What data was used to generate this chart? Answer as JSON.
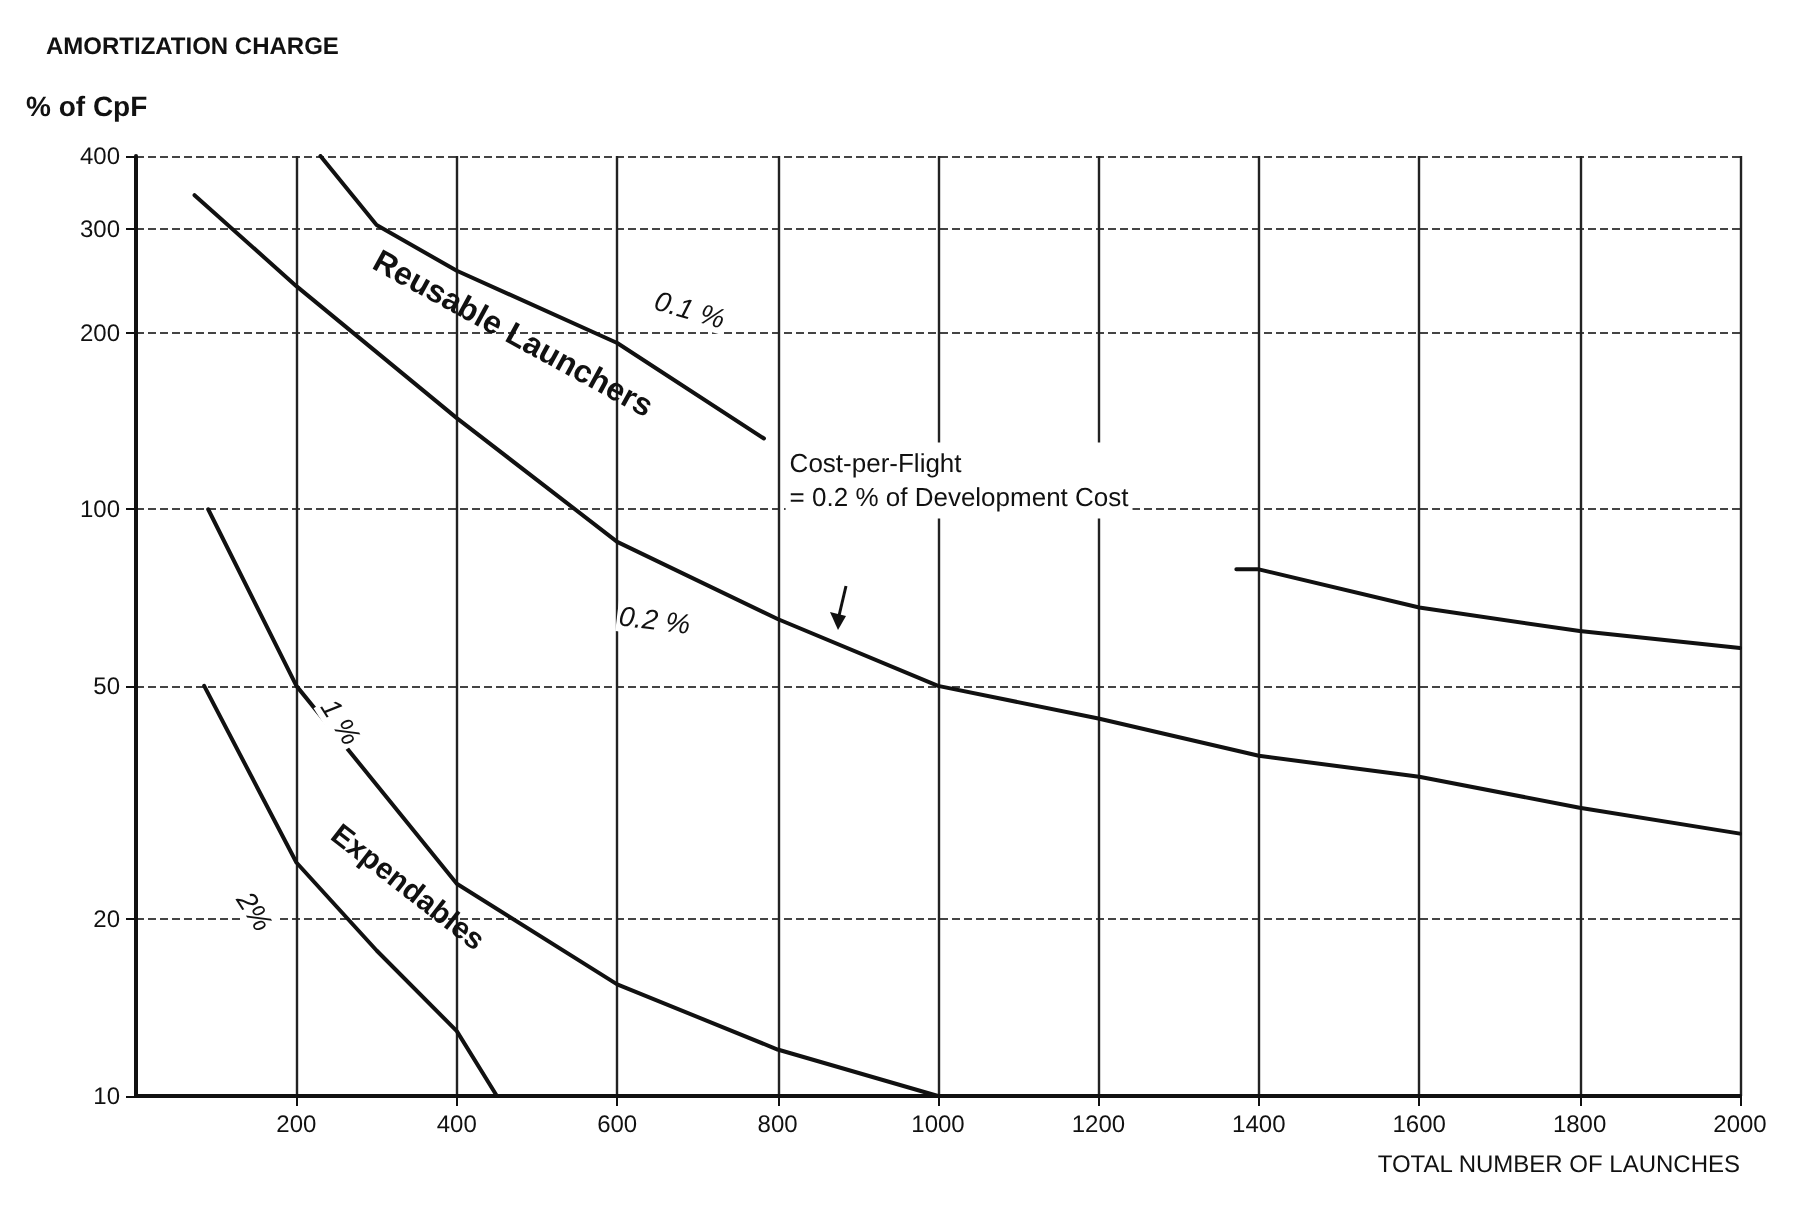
{
  "chart_data": {
    "type": "line",
    "title": "AMORTIZATION CHARGE",
    "ylabel": "% of CpF",
    "xlabel": "TOTAL NUMBER OF LAUNCHES",
    "series": [
      {
        "name": "0.1 %",
        "color": "#111111",
        "x": [
          230,
          300,
          400,
          600,
          783,
          1000,
          1372,
          1400,
          1600,
          1800,
          2000
        ],
        "values": [
          400,
          305,
          255,
          192,
          132,
          null,
          79,
          79,
          68,
          62,
          58
        ]
      },
      {
        "name": "0.2 %",
        "color": "#111111",
        "x": [
          73,
          200,
          400,
          600,
          800,
          1000,
          1200,
          1400,
          1600,
          1800,
          2000
        ],
        "values": [
          343,
          240,
          143,
          88,
          65,
          50,
          44,
          38,
          35,
          31,
          28
        ]
      },
      {
        "name": "1 %",
        "color": "#111111",
        "x": [
          90,
          200,
          400,
          600,
          800,
          1000
        ],
        "values": [
          100,
          50,
          23,
          15.5,
          12,
          10
        ]
      },
      {
        "name": "2%",
        "color": "#111111",
        "x": [
          85,
          200,
          300,
          400,
          450
        ],
        "values": [
          50,
          25,
          17.7,
          12.9,
          10
        ]
      }
    ],
    "annotations": [
      "Reusable Launchers",
      "Expendables",
      "Cost-per-Flight\n= 0.2 % of Development Cost"
    ],
    "xlim": [
      0,
      2000
    ],
    "xticks": [
      200,
      400,
      600,
      800,
      1000,
      1200,
      1400,
      1600,
      1800,
      2000
    ],
    "ylim": [
      10,
      400
    ],
    "yticks": [
      10,
      20,
      50,
      100,
      200,
      300,
      400
    ],
    "log": "y",
    "grid": true,
    "legend": false,
    "marker": "none",
    "line_style": "solid"
  }
}
